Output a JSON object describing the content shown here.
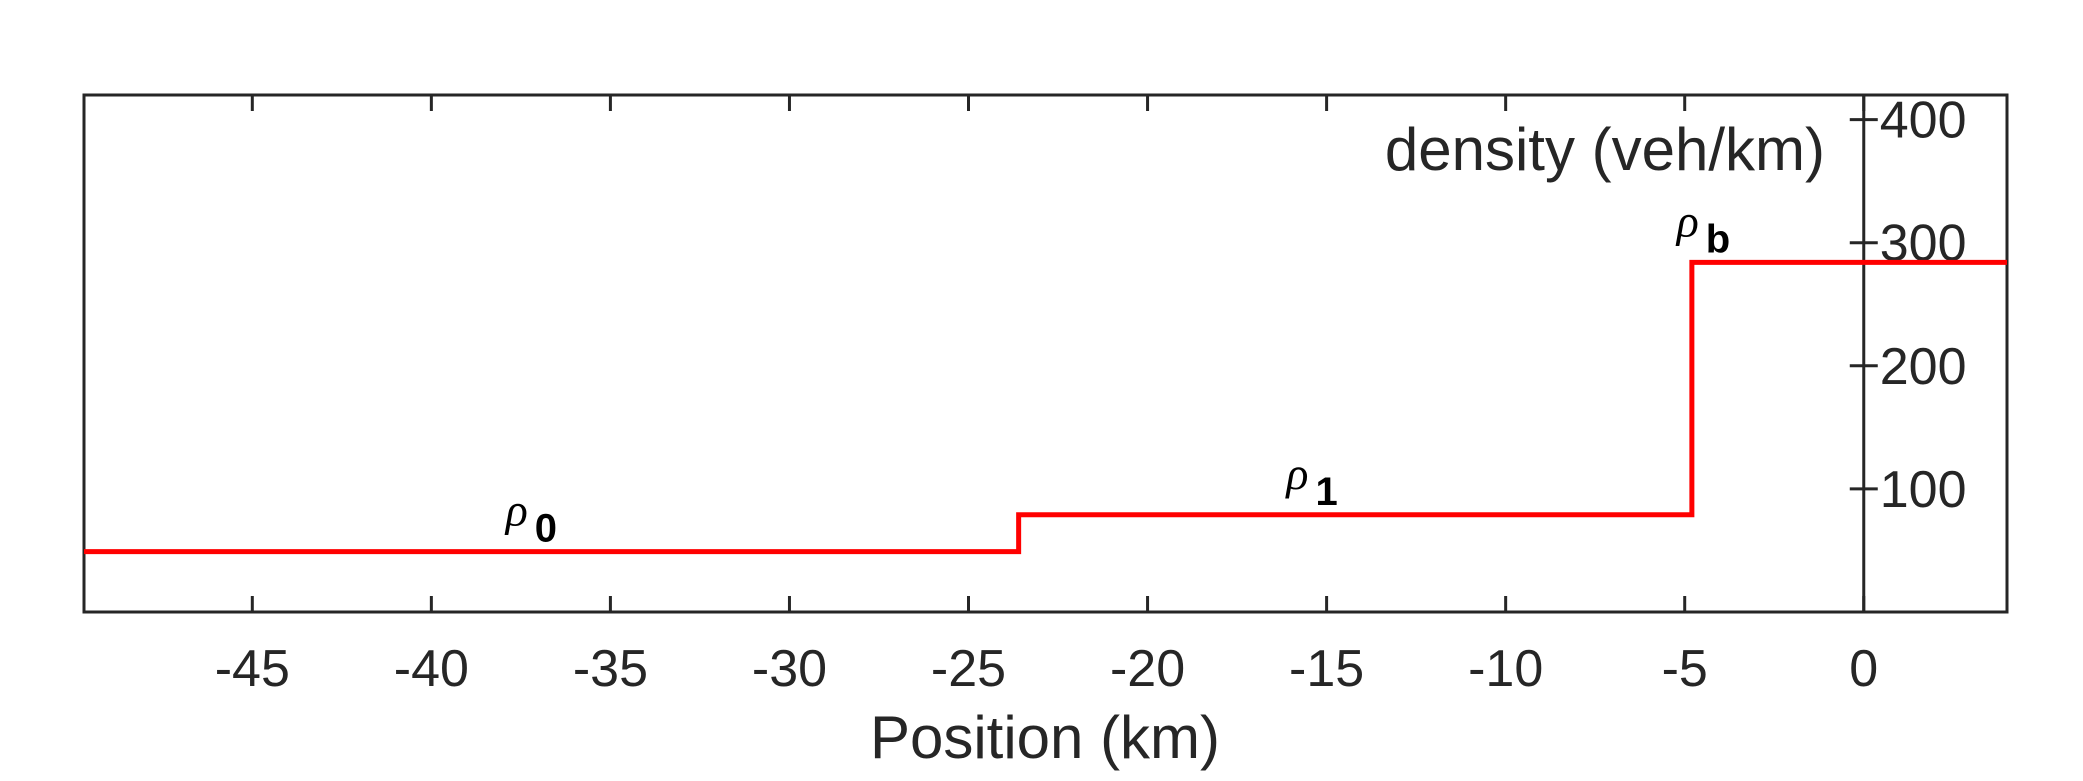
{
  "chart_data": {
    "type": "line",
    "title": "",
    "xlabel": "Position (km)",
    "ylabel": "density (veh/km)",
    "xlim": [
      -49.7,
      4
    ],
    "ylim": [
      0,
      420
    ],
    "x_ticks": [
      -45,
      -40,
      -35,
      -30,
      -25,
      -20,
      -15,
      -10,
      -5,
      0
    ],
    "x_tick_labels": [
      "-45",
      "-40",
      "-35",
      "-30",
      "-25",
      "-20",
      "-15",
      "-10",
      "-5",
      "0"
    ],
    "y_ticks": [
      100,
      200,
      300,
      400
    ],
    "y_tick_labels": [
      "100",
      "200",
      "300",
      "400"
    ],
    "y_axis_position": "x=0",
    "grid": false,
    "series": [
      {
        "color": "#ff0000",
        "step": true,
        "x": [
          -49.7,
          -23.6,
          -23.6,
          -4.8,
          -4.8,
          4
        ],
        "y": [
          49,
          49,
          79,
          79,
          284,
          284
        ]
      }
    ],
    "annotations": [
      {
        "symbol": "ρ",
        "subscript": "0",
        "x": -37,
        "y": 49
      },
      {
        "symbol": "ρ",
        "subscript": "1",
        "x": -15.2,
        "y": 79
      },
      {
        "symbol": "ρ",
        "subscript": "b",
        "x": -4.3,
        "y": 284
      }
    ]
  }
}
